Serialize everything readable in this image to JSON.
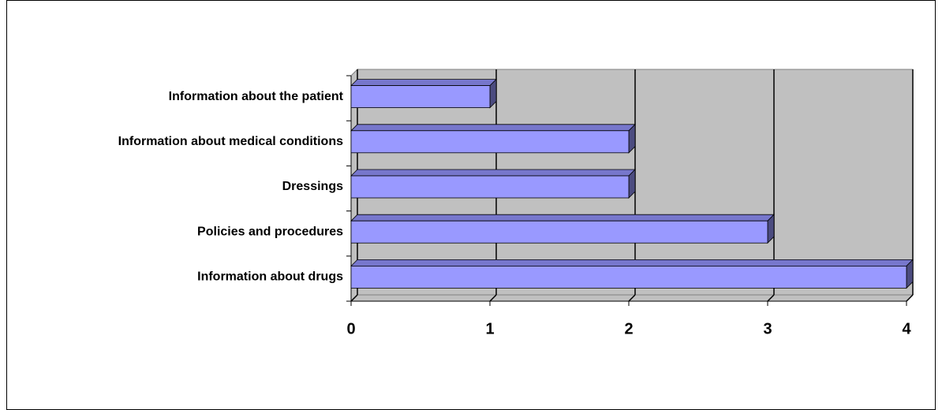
{
  "chart_data": {
    "type": "bar3d",
    "categories": [
      "Information about the patient",
      "Information about medical conditions",
      "Dressings",
      "Policies and procedures",
      "Information about drugs"
    ],
    "values": [
      1,
      2,
      2,
      3,
      4
    ],
    "color": "#9999ff",
    "xlim": [
      0,
      4
    ],
    "xticks": [
      0,
      1,
      2,
      3,
      4
    ],
    "grid": true
  }
}
